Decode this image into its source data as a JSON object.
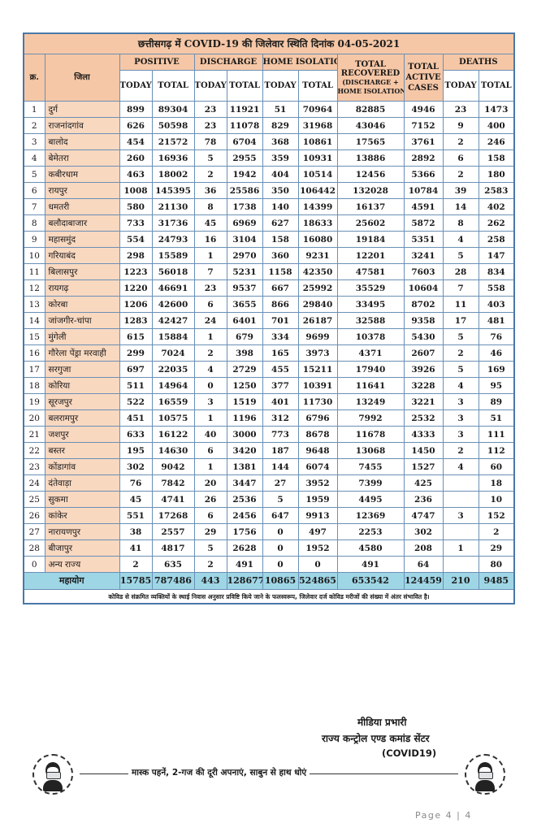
{
  "title": "छत्तीसगढ़ में COVID-19 की जिलेवार स्थिति दिनांक 04-05-2021",
  "headers": {
    "sn": "क्र.",
    "district": "जिला",
    "positive": "POSITIVE",
    "discharge": "DISCHARGE",
    "home_isolation": "HOME ISOLATION",
    "total_recovered_1": "TOTAL",
    "total_recovered_2": "RECOVERED",
    "total_recovered_3": "(DISCHARGE +",
    "total_recovered_4": "HOME ISOLATION)",
    "active_1": "TOTAL",
    "active_2": "ACTIVE",
    "active_3": "CASES",
    "deaths": "DEATHS",
    "today": "TODAY",
    "total": "TOTAL"
  },
  "rows": [
    [
      "1",
      "दुर्ग",
      "899",
      "89304",
      "23",
      "11921",
      "51",
      "70964",
      "82885",
      "4946",
      "23",
      "1473"
    ],
    [
      "2",
      "राजनांदगांव",
      "626",
      "50598",
      "23",
      "11078",
      "829",
      "31968",
      "43046",
      "7152",
      "9",
      "400"
    ],
    [
      "3",
      "बालोद",
      "454",
      "21572",
      "78",
      "6704",
      "368",
      "10861",
      "17565",
      "3761",
      "2",
      "246"
    ],
    [
      "4",
      "बेमेतरा",
      "260",
      "16936",
      "5",
      "2955",
      "359",
      "10931",
      "13886",
      "2892",
      "6",
      "158"
    ],
    [
      "5",
      "कबीरधाम",
      "463",
      "18002",
      "2",
      "1942",
      "404",
      "10514",
      "12456",
      "5366",
      "2",
      "180"
    ],
    [
      "6",
      "रायपुर",
      "1008",
      "145395",
      "36",
      "25586",
      "350",
      "106442",
      "132028",
      "10784",
      "39",
      "2583"
    ],
    [
      "7",
      "धमतरी",
      "580",
      "21130",
      "8",
      "1738",
      "140",
      "14399",
      "16137",
      "4591",
      "14",
      "402"
    ],
    [
      "8",
      "बलौदाबाजार",
      "733",
      "31736",
      "45",
      "6969",
      "627",
      "18633",
      "25602",
      "5872",
      "8",
      "262"
    ],
    [
      "9",
      "महासमुंद",
      "554",
      "24793",
      "16",
      "3104",
      "158",
      "16080",
      "19184",
      "5351",
      "4",
      "258"
    ],
    [
      "10",
      "गरियाबंद",
      "298",
      "15589",
      "1",
      "2970",
      "360",
      "9231",
      "12201",
      "3241",
      "5",
      "147"
    ],
    [
      "11",
      "बिलासपुर",
      "1223",
      "56018",
      "7",
      "5231",
      "1158",
      "42350",
      "47581",
      "7603",
      "28",
      "834"
    ],
    [
      "12",
      "रायगढ़",
      "1220",
      "46691",
      "23",
      "9537",
      "667",
      "25992",
      "35529",
      "10604",
      "7",
      "558"
    ],
    [
      "13",
      "कोरबा",
      "1206",
      "42600",
      "6",
      "3655",
      "866",
      "29840",
      "33495",
      "8702",
      "11",
      "403"
    ],
    [
      "14",
      "जांजगीर-चांपा",
      "1283",
      "42427",
      "24",
      "6401",
      "701",
      "26187",
      "32588",
      "9358",
      "17",
      "481"
    ],
    [
      "15",
      "मुंगेली",
      "615",
      "15884",
      "1",
      "679",
      "334",
      "9699",
      "10378",
      "5430",
      "5",
      "76"
    ],
    [
      "16",
      "गौरेला पेंड्रा मरवाही",
      "299",
      "7024",
      "2",
      "398",
      "165",
      "3973",
      "4371",
      "2607",
      "2",
      "46"
    ],
    [
      "17",
      "सरगुजा",
      "697",
      "22035",
      "4",
      "2729",
      "455",
      "15211",
      "17940",
      "3926",
      "5",
      "169"
    ],
    [
      "18",
      "कोरिया",
      "511",
      "14964",
      "0",
      "1250",
      "377",
      "10391",
      "11641",
      "3228",
      "4",
      "95"
    ],
    [
      "19",
      "सूरजपुर",
      "522",
      "16559",
      "3",
      "1519",
      "401",
      "11730",
      "13249",
      "3221",
      "3",
      "89"
    ],
    [
      "20",
      "बलरामपुर",
      "451",
      "10575",
      "1",
      "1196",
      "312",
      "6796",
      "7992",
      "2532",
      "3",
      "51"
    ],
    [
      "21",
      "जशपुर",
      "633",
      "16122",
      "40",
      "3000",
      "773",
      "8678",
      "11678",
      "4333",
      "3",
      "111"
    ],
    [
      "22",
      "बस्तर",
      "195",
      "14630",
      "6",
      "3420",
      "187",
      "9648",
      "13068",
      "1450",
      "2",
      "112"
    ],
    [
      "23",
      "कोंडागांव",
      "302",
      "9042",
      "1",
      "1381",
      "144",
      "6074",
      "7455",
      "1527",
      "4",
      "60"
    ],
    [
      "24",
      "दंतेवाड़ा",
      "76",
      "7842",
      "20",
      "3447",
      "27",
      "3952",
      "7399",
      "425",
      "",
      "18"
    ],
    [
      "25",
      "सुकमा",
      "45",
      "4741",
      "26",
      "2536",
      "5",
      "1959",
      "4495",
      "236",
      "",
      "10"
    ],
    [
      "26",
      "कांकेर",
      "551",
      "17268",
      "6",
      "2456",
      "647",
      "9913",
      "12369",
      "4747",
      "3",
      "152"
    ],
    [
      "27",
      "नारायणपुर",
      "38",
      "2557",
      "29",
      "1756",
      "0",
      "497",
      "2253",
      "302",
      "",
      "2"
    ],
    [
      "28",
      "बीजापुर",
      "41",
      "4817",
      "5",
      "2628",
      "0",
      "1952",
      "4580",
      "208",
      "1",
      "29"
    ],
    [
      "0",
      "अन्य राज्य",
      "2",
      "635",
      "2",
      "491",
      "0",
      "0",
      "491",
      "64",
      "",
      "80"
    ]
  ],
  "total_row": [
    "महायोग",
    "15785",
    "787486",
    "443",
    "128677",
    "10865",
    "524865",
    "653542",
    "124459",
    "210",
    "9485"
  ],
  "note": "कोविड से संक्रमित व्यक्तियों के स्थाई निवास अनुसार प्रविष्टि किये जाने के फलस्वरूप, जिलेवार दर्ज कोविड मरीजों की संख्या में अंतर संभावित है।",
  "signature": {
    "line1": "मीडिया प्रभारी",
    "line2": "राज्य कन्ट्रोल एण्ड कमांड सेंटर",
    "line3": "(COVID19)"
  },
  "banner": "मास्क पहनें, 2-गज की दूरी अपनाएं, साबुन से हाथ धोएं",
  "page_number": "Page 4 | 4",
  "colors": {
    "header_bg": "#f6c7a6",
    "district_bg": "#f9d8c0",
    "total_row_bg": "#9fd6e6",
    "border": "#6a8fb5"
  }
}
